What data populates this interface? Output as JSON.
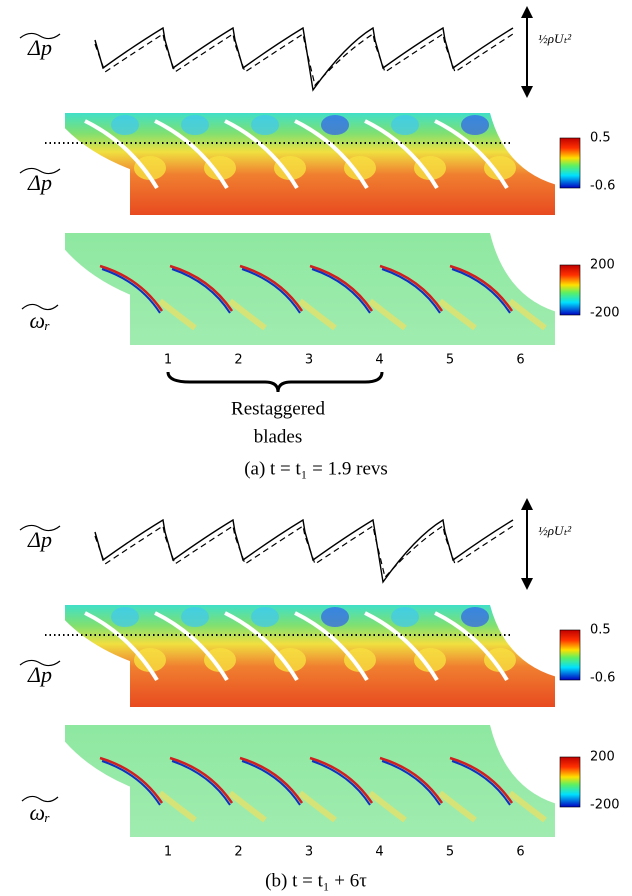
{
  "panels": [
    {
      "trace_label": "Δp",
      "scale_label": "½ρUₜ²",
      "pressure_label": "Δp",
      "pressure_colorbar": {
        "max": "0.5",
        "min": "-0.6"
      },
      "vorticity_label": "ωᵣ",
      "vorticity_colorbar": {
        "max": "200",
        "min": "-200"
      },
      "blade_numbers": [
        "1",
        "2",
        "3",
        "4",
        "5",
        "6"
      ],
      "annotation": [
        "Restaggered",
        "blades"
      ],
      "caption": "(a) t = t₁ = 1.9 revs"
    },
    {
      "trace_label": "Δp",
      "scale_label": "½ρUₜ²",
      "pressure_label": "Δp",
      "pressure_colorbar": {
        "max": "0.5",
        "min": "-0.6"
      },
      "vorticity_label": "ωᵣ",
      "vorticity_colorbar": {
        "max": "200",
        "min": "-200"
      },
      "blade_numbers": [
        "1",
        "2",
        "3",
        "4",
        "5",
        "6"
      ],
      "caption": "(b) t = t₁ + 6τ"
    }
  ]
}
